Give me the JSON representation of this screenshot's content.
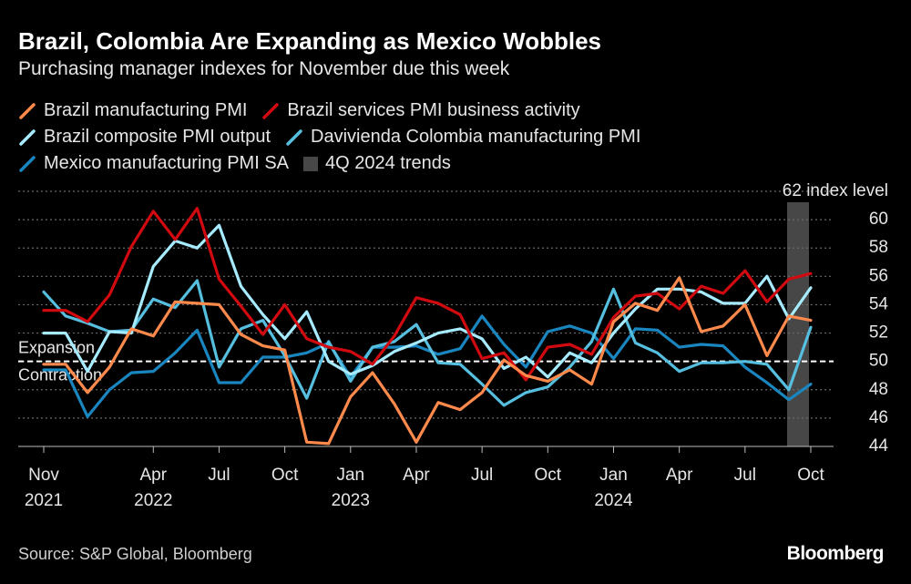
{
  "chart_data": {
    "type": "line",
    "title": "Brazil, Colombia Are Expanding as Mexico Wobbles",
    "subtitle": "Purchasing manager indexes for November due this week",
    "x": [
      "2021-11",
      "2021-12",
      "2022-01",
      "2022-02",
      "2022-03",
      "2022-04",
      "2022-05",
      "2022-06",
      "2022-07",
      "2022-08",
      "2022-09",
      "2022-10",
      "2022-11",
      "2022-12",
      "2023-01",
      "2023-02",
      "2023-03",
      "2023-04",
      "2023-05",
      "2023-06",
      "2023-07",
      "2023-08",
      "2023-09",
      "2023-10",
      "2023-11",
      "2023-12",
      "2024-01",
      "2024-02",
      "2024-03",
      "2024-04",
      "2024-05",
      "2024-06",
      "2024-07",
      "2024-08",
      "2024-09",
      "2024-10"
    ],
    "xlim": [
      "2021-11",
      "2024-10"
    ],
    "xticks": [
      {
        "value": "2021-11",
        "label": "Nov\n2021"
      },
      {
        "value": "2022-04",
        "label": "Apr\n2022"
      },
      {
        "value": "2022-07",
        "label": "Jul"
      },
      {
        "value": "2022-10",
        "label": "Oct"
      },
      {
        "value": "2023-01",
        "label": "Jan\n2023"
      },
      {
        "value": "2023-04",
        "label": "Apr"
      },
      {
        "value": "2023-07",
        "label": "Jul"
      },
      {
        "value": "2023-10",
        "label": "Oct"
      },
      {
        "value": "2024-01",
        "label": "Jan\n2024"
      },
      {
        "value": "2024-04",
        "label": "Apr"
      },
      {
        "value": "2024-07",
        "label": "Jul"
      },
      {
        "value": "2024-10",
        "label": "Oct"
      }
    ],
    "ylim": [
      44,
      62
    ],
    "yticks": [
      44,
      46,
      48,
      50,
      52,
      54,
      56,
      58,
      60,
      {
        "value": 62,
        "label": "62 index level"
      }
    ],
    "grid": true,
    "series": [
      {
        "name": "Brazil manufacturing PMI",
        "color": "#ff8a4c",
        "values": [
          49.8,
          49.8,
          47.8,
          49.6,
          52.3,
          51.8,
          54.2,
          54.1,
          54.0,
          51.9,
          51.1,
          50.8,
          44.3,
          44.2,
          47.5,
          49.2,
          47.0,
          44.3,
          47.1,
          46.6,
          47.8,
          50.1,
          49.0,
          48.6,
          49.4,
          48.4,
          52.8,
          54.1,
          53.6,
          55.9,
          52.1,
          52.5,
          54.0,
          50.4,
          53.2,
          52.9
        ]
      },
      {
        "name": "Brazil services PMI business activity",
        "color": "#d10a10",
        "values": [
          53.6,
          53.6,
          52.8,
          54.7,
          58.1,
          60.6,
          58.6,
          60.8,
          55.8,
          53.9,
          51.9,
          54.0,
          51.6,
          51.0,
          50.7,
          49.8,
          51.8,
          54.5,
          54.1,
          53.3,
          50.2,
          50.6,
          48.7,
          51.0,
          51.2,
          50.5,
          53.1,
          54.6,
          54.8,
          53.7,
          55.3,
          54.8,
          56.4,
          54.2,
          55.8,
          56.2
        ]
      },
      {
        "name": "Brazil composite PMI output",
        "color": "#a6ebff",
        "values": [
          52.0,
          52.0,
          49.3,
          52.1,
          52.0,
          56.7,
          58.5,
          58.0,
          59.6,
          55.3,
          53.3,
          51.6,
          53.5,
          50.0,
          49.1,
          49.7,
          50.7,
          51.3,
          52.0,
          52.3,
          51.6,
          49.5,
          50.3,
          48.9,
          50.6,
          49.9,
          52.0,
          53.7,
          55.1,
          55.1,
          54.9,
          54.1,
          54.1,
          56.0,
          53.0,
          55.2
        ]
      },
      {
        "name": "Davivienda Colombia manufacturing PMI",
        "color": "#56bfdf",
        "values": [
          54.9,
          53.2,
          52.7,
          52.1,
          52.2,
          54.4,
          53.8,
          55.7,
          49.6,
          52.3,
          52.9,
          50.4,
          47.4,
          51.4,
          48.6,
          51.0,
          51.4,
          52.6,
          49.9,
          49.8,
          48.4,
          46.9,
          47.8,
          48.2,
          49.6,
          51.4,
          55.1,
          51.3,
          50.6,
          49.3,
          49.9,
          49.9,
          50.0,
          49.8,
          48.0,
          52.4
        ]
      },
      {
        "name": "Mexico manufacturing PMI SA",
        "color": "#1a86c0",
        "values": [
          49.4,
          49.4,
          46.1,
          48.0,
          49.2,
          49.3,
          50.6,
          52.2,
          48.5,
          48.5,
          50.3,
          50.3,
          50.6,
          51.3,
          48.9,
          51.0,
          51.0,
          51.1,
          50.5,
          50.9,
          53.2,
          51.2,
          49.6,
          52.1,
          52.5,
          52.0,
          50.2,
          52.3,
          52.2,
          51.0,
          51.2,
          51.1,
          49.6,
          48.5,
          47.3,
          48.4
        ]
      }
    ],
    "shade": {
      "name": "4Q 2024 trends",
      "x": "2024-10",
      "color": "#474747"
    },
    "reference_line": {
      "value": 50,
      "above_label": "Expansion",
      "below_label": "Contraction"
    },
    "source": "Source: S&P Global, Bloomberg",
    "brand": "Bloomberg"
  }
}
